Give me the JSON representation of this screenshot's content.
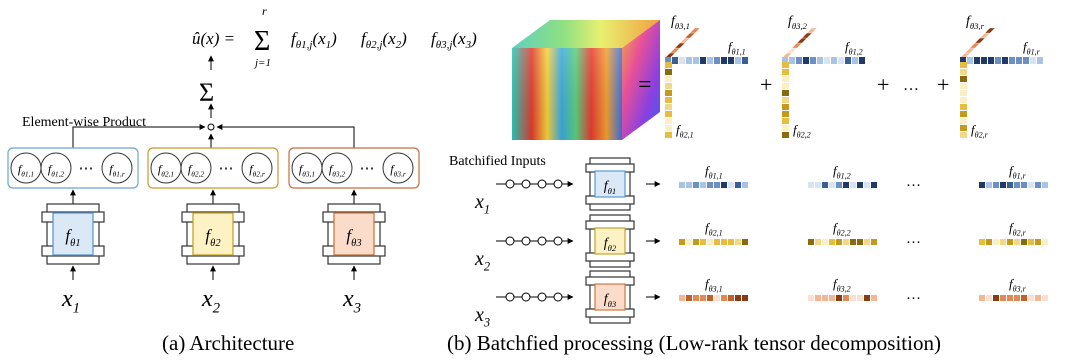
{
  "left": {
    "caption": "(a) Architecture",
    "element_wise_label": "Element-wise Product",
    "sum_symbol": "Σ",
    "product_symbol": "∘",
    "formula": {
      "lhs": "û(x) = ",
      "sum_top": "r",
      "sum_bottom": "j=1",
      "rhs_f": "f",
      "rhs_terms": [
        "θ1,j(x1)",
        "θ2,j(x2)",
        "θ3,j(x3)"
      ]
    },
    "groups": [
      {
        "nodes": [
          "fθ1,1",
          "fθ1,2",
          "fθ1,r"
        ],
        "net_label": "fθ1",
        "input": "x1"
      },
      {
        "nodes": [
          "fθ2,1",
          "fθ2,2",
          "fθ2,r"
        ],
        "net_label": "fθ2",
        "input": "x2"
      },
      {
        "nodes": [
          "fθ3,1",
          "fθ3,2",
          "fθ3,r"
        ],
        "net_label": "fθ3",
        "input": "x3"
      }
    ],
    "ellipsis": "⋯"
  },
  "right": {
    "caption": "(b) Batchfied processing (Low-rank tensor decomposition)",
    "batch_label": "Batchified Inputs",
    "equals": "=",
    "plus": "+",
    "dots": "…",
    "rank_terms": [
      {
        "top": "fθ3,1",
        "side": "fθ1,1",
        "bottom": "fθ2,1"
      },
      {
        "top": "fθ3,2",
        "side": "fθ1,2",
        "bottom": "fθ2,2"
      },
      {
        "top": "fθ3,r",
        "side": "fθ1,r",
        "bottom": "fθ2,r"
      }
    ],
    "rows": [
      {
        "input": "x1",
        "net": "fθ1",
        "outs": [
          "fθ1,1",
          "fθ1,2",
          "fθ1,r"
        ]
      },
      {
        "input": "x2",
        "net": "fθ2",
        "outs": [
          "fθ2,1",
          "fθ2,2",
          "fθ2,r"
        ]
      },
      {
        "input": "x3",
        "net": "fθ3",
        "outs": [
          "fθ3,1",
          "fθ3,2",
          "fθ3,r"
        ]
      }
    ]
  },
  "colors": {
    "blue_box": "#5b9bd5",
    "blue_fill": "#dbe8f6",
    "yellow_box": "#c9a227",
    "yellow_fill": "#fdf2c4",
    "orange_box": "#d0783f",
    "orange_fill": "#fbdccb",
    "group_blue_border": "#6aa5d8",
    "group_yellow_border": "#c99a2e",
    "group_orange_border": "#c66f3c"
  }
}
